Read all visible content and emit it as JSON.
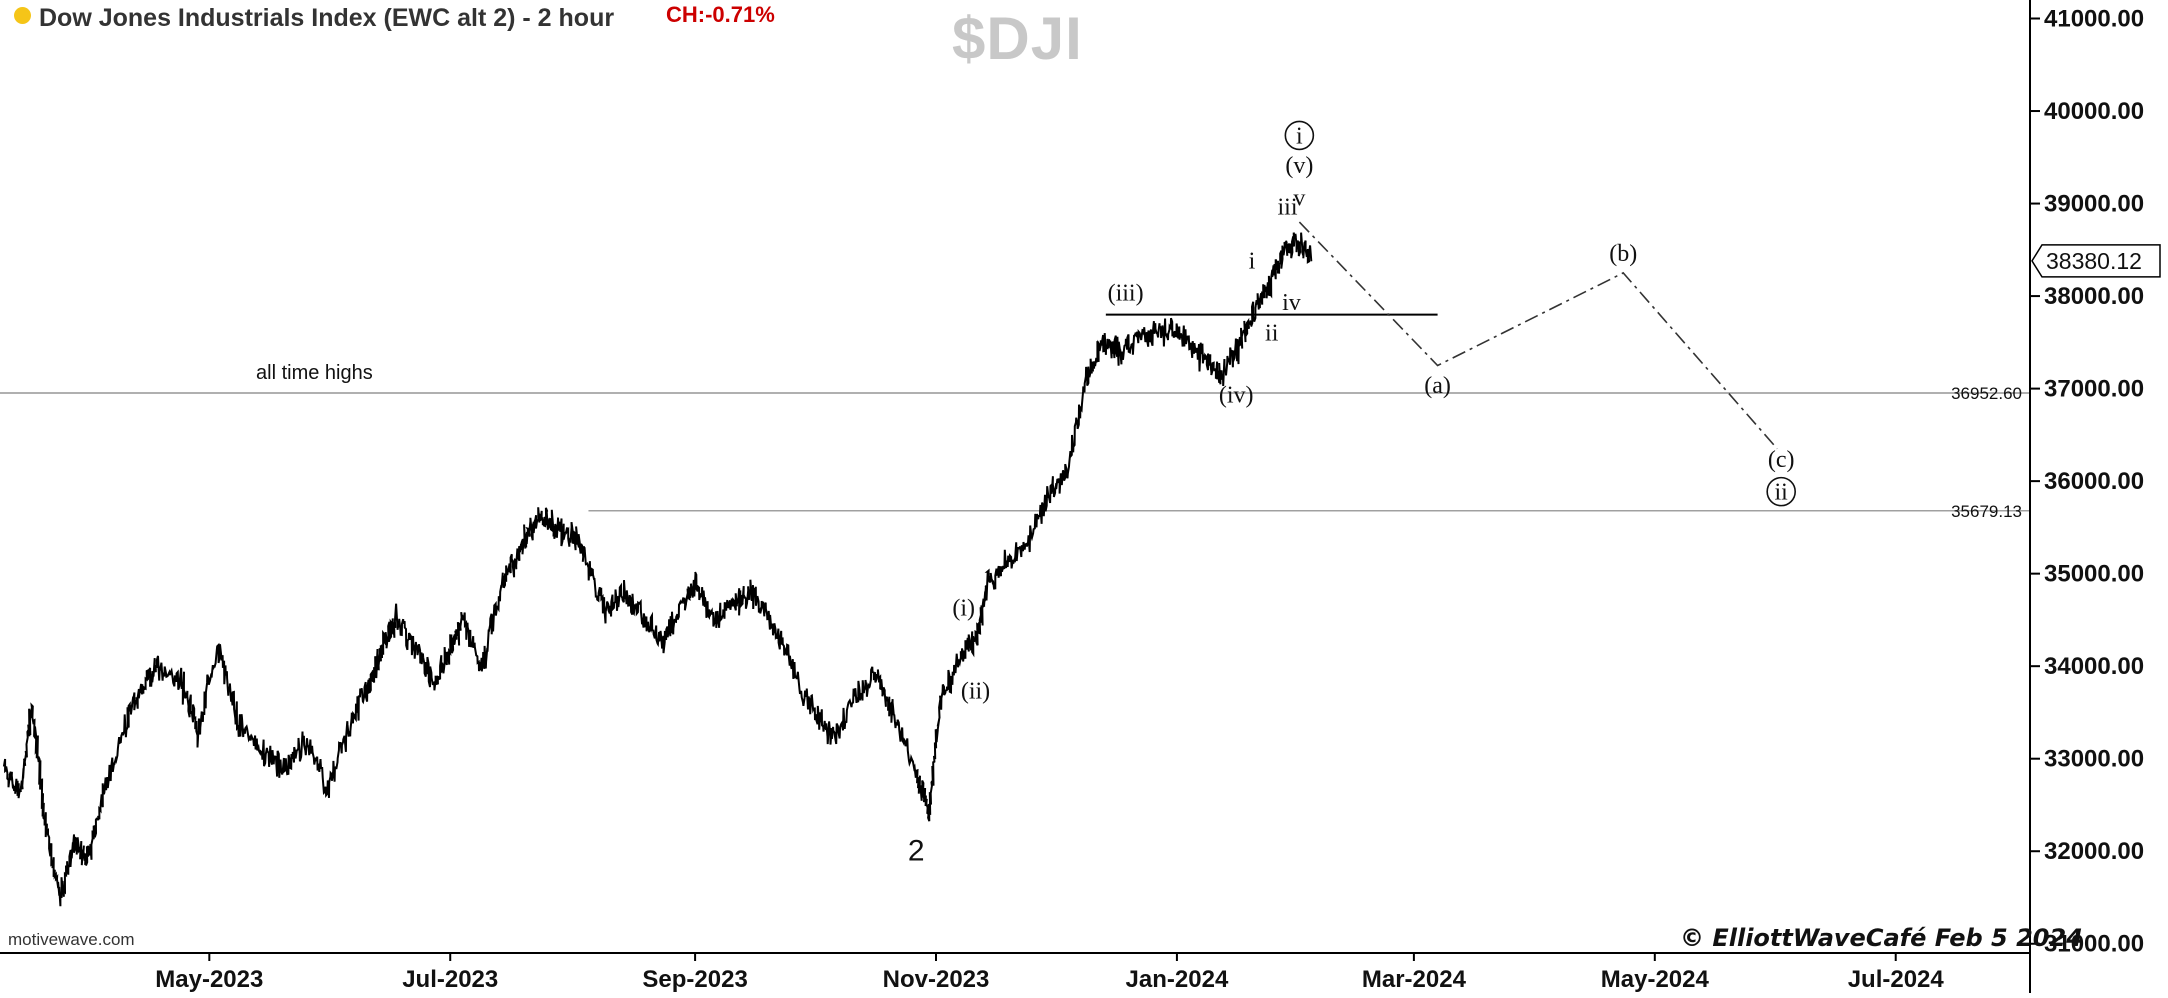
{
  "header": {
    "title": "Dow Jones Industrials Index (EWC alt 2) - 2 hour",
    "change": "CH:-0.71%",
    "symbol": "$DJI"
  },
  "footer": {
    "watermark": "motivewave.com",
    "copyright": "© ElliottWaveCafé Feb 5 2024"
  },
  "colors": {
    "price": "#000000",
    "grid": "#999999",
    "change": "#cc0000",
    "symbol": "#c8c8c8",
    "status_dot": "#f5c518"
  },
  "chart_data": {
    "type": "line",
    "title": "Dow Jones Industrials Index (EWC alt 2) - 2 hour",
    "y_axis": {
      "position": "right",
      "ticks": [
        31000,
        32000,
        33000,
        34000,
        35000,
        36000,
        37000,
        38000,
        39000,
        40000,
        41000
      ],
      "tick_labels": [
        "31000.00",
        "32000.00",
        "33000.00",
        "34000.00",
        "35000.00",
        "36000.00",
        "37000.00",
        "38000.00",
        "39000.00",
        "40000.00",
        "41000.00"
      ],
      "ylim": [
        30900,
        41200
      ]
    },
    "x_axis": {
      "ticks": [
        "2023-05-01",
        "2023-07-01",
        "2023-09-01",
        "2023-11-01",
        "2024-01-01",
        "2024-03-01",
        "2024-05-01",
        "2024-07-01"
      ],
      "tick_labels": [
        "May-2023",
        "Jul-2023",
        "Sep-2023",
        "Nov-2023",
        "Jan-2024",
        "Mar-2024",
        "May-2024",
        "Jul-2024"
      ],
      "xlim": [
        "2023-03-09",
        "2024-08-04"
      ]
    },
    "last_price": {
      "value": 38380.12,
      "label": "38380.12"
    },
    "series": [
      {
        "x": [
          "2023-03-10",
          "2023-03-14",
          "2023-03-17",
          "2023-03-20",
          "2023-03-24",
          "2023-03-28",
          "2023-03-31",
          "2023-04-04",
          "2023-04-10",
          "2023-04-14",
          "2023-04-18",
          "2023-04-24",
          "2023-04-28",
          "2023-05-03",
          "2023-05-08",
          "2023-05-14",
          "2023-05-20",
          "2023-05-25",
          "2023-05-31",
          "2023-06-05",
          "2023-06-10",
          "2023-06-14",
          "2023-06-17",
          "2023-06-22",
          "2023-06-27",
          "2023-07-01",
          "2023-07-04",
          "2023-07-09",
          "2023-07-14",
          "2023-07-18",
          "2023-07-21",
          "2023-07-25",
          "2023-07-28",
          "2023-08-01",
          "2023-08-04",
          "2023-08-09",
          "2023-08-14",
          "2023-08-19",
          "2023-08-24",
          "2023-08-29",
          "2023-09-01",
          "2023-09-06",
          "2023-09-11",
          "2023-09-15",
          "2023-09-20",
          "2023-09-25",
          "2023-10-01",
          "2023-10-06",
          "2023-10-12",
          "2023-10-17",
          "2023-10-21",
          "2023-10-27",
          "2023-10-30",
          "2023-11-02",
          "2023-11-07",
          "2023-11-11",
          "2023-11-14",
          "2023-11-18",
          "2023-11-24",
          "2023-11-30",
          "2023-12-04",
          "2023-12-09",
          "2023-12-13",
          "2023-12-18",
          "2023-12-23",
          "2023-12-28",
          "2024-01-02",
          "2024-01-08",
          "2024-01-12",
          "2024-01-17",
          "2024-01-20",
          "2024-01-24",
          "2024-01-28",
          "2024-01-31",
          "2024-02-04"
        ],
        "y": [
          32900,
          32600,
          33600,
          32400,
          31500,
          32100,
          31900,
          32600,
          33400,
          33800,
          34000,
          33800,
          33300,
          34200,
          33400,
          33100,
          32900,
          33200,
          32700,
          33300,
          33800,
          34200,
          34500,
          34200,
          33800,
          34200,
          34500,
          34000,
          34900,
          35200,
          35500,
          35600,
          35500,
          35400,
          35200,
          34600,
          34800,
          34500,
          34300,
          34700,
          34900,
          34500,
          34700,
          34800,
          34500,
          34000,
          33500,
          33200,
          33700,
          33900,
          33500,
          32800,
          32400,
          33600,
          34100,
          34300,
          34900,
          35100,
          35300,
          35900,
          36100,
          37100,
          37500,
          37400,
          37600,
          37600,
          37600,
          37300,
          37100,
          37500,
          37800,
          38100,
          38500,
          38600,
          38380
        ]
      }
    ],
    "reference_lines": [
      {
        "value": 36952.6,
        "label": "36952.60",
        "note": "all time highs"
      },
      {
        "value": 35679.13,
        "label": "35679.13"
      }
    ],
    "wave_labels": [
      {
        "text": "2",
        "x": "2023-10-27",
        "y": 31900
      },
      {
        "text": "(i)",
        "x": "2023-11-08",
        "y": 34550
      },
      {
        "text": "(ii)",
        "x": "2023-11-11",
        "y": 33650
      },
      {
        "text": "(iii)",
        "x": "2023-12-19",
        "y": 37950
      },
      {
        "text": "(iv)",
        "x": "2024-01-16",
        "y": 36850
      },
      {
        "text": "i",
        "x": "2024-01-20",
        "y": 38300
      },
      {
        "text": "ii",
        "x": "2024-01-25",
        "y": 37520
      },
      {
        "text": "iii",
        "x": "2024-01-29",
        "y": 38880
      },
      {
        "text": "iv",
        "x": "2024-01-30",
        "y": 37850
      },
      {
        "text": "v",
        "x": "2024-02-01",
        "y": 38980
      },
      {
        "text": "(v)",
        "x": "2024-02-01",
        "y": 39330
      },
      {
        "text": "i",
        "x": "2024-02-01",
        "y": 39650,
        "circled": true
      },
      {
        "text": "(a)",
        "x": "2024-03-07",
        "y": 36950
      },
      {
        "text": "(b)",
        "x": "2024-04-23",
        "y": 38380
      },
      {
        "text": "(c)",
        "x": "2024-06-02",
        "y": 36150
      },
      {
        "text": "ii",
        "x": "2024-06-02",
        "y": 35800,
        "circled": true
      }
    ],
    "projection": {
      "x": [
        "2024-02-01",
        "2024-03-07",
        "2024-04-23",
        "2024-06-01"
      ],
      "y": [
        38800,
        37250,
        38250,
        36350
      ]
    },
    "support_line": {
      "x": [
        "2023-12-14",
        "2024-03-07"
      ],
      "y": 37800
    },
    "annotation": "all time highs"
  }
}
